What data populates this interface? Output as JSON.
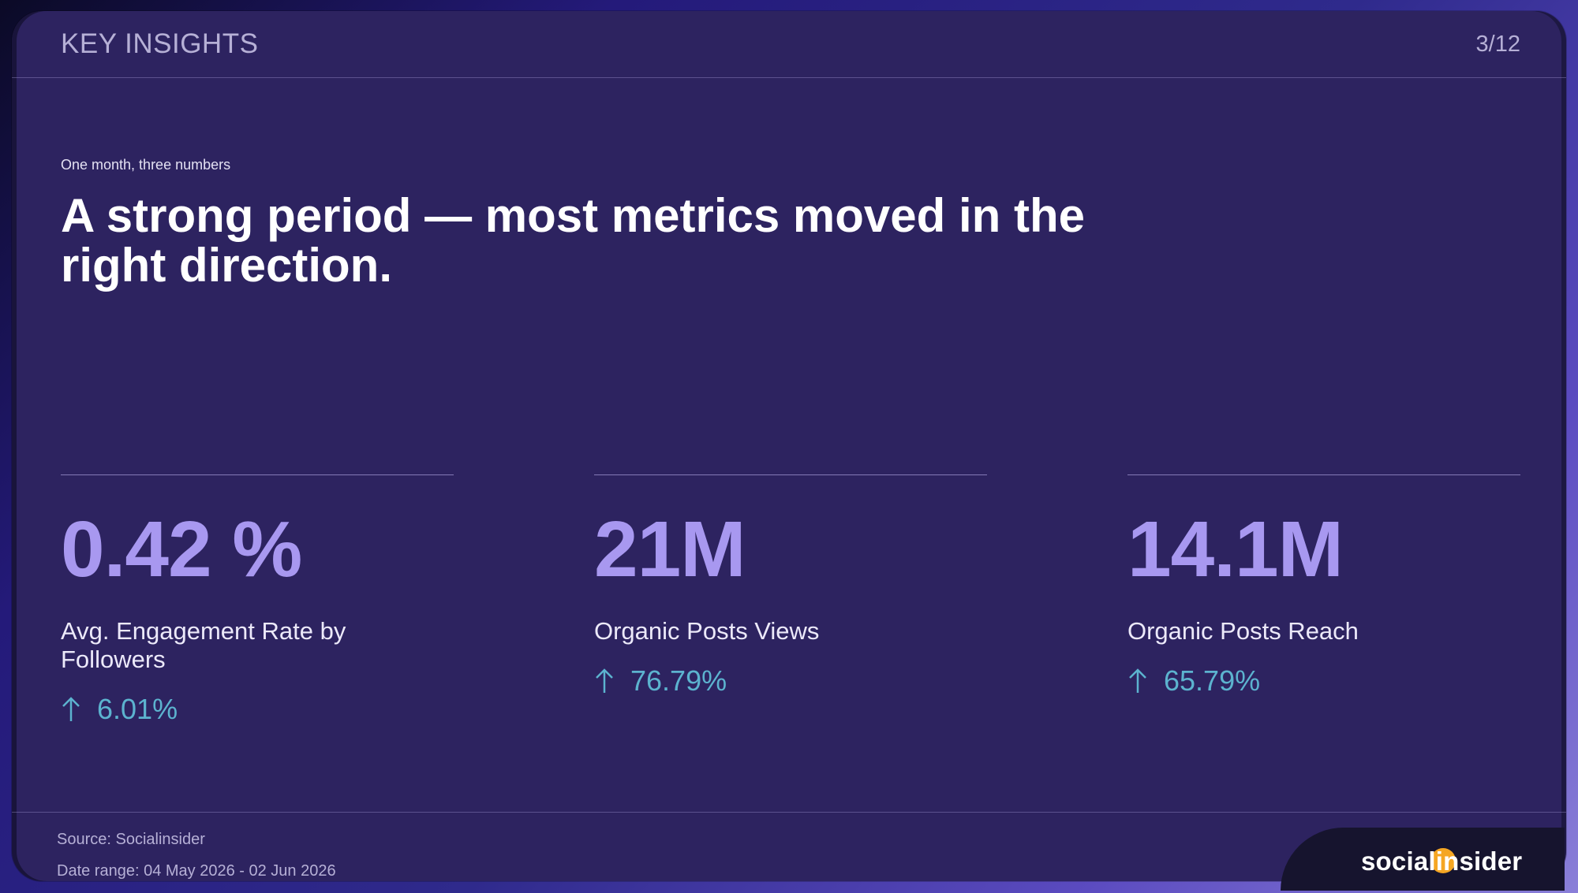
{
  "header": {
    "section_title": "KEY INSIGHTS",
    "page_indicator": "3/12"
  },
  "intro": {
    "eyebrow": "One month, three numbers",
    "headline_line1": "A strong period — most metrics moved in the",
    "headline_line2": "right direction."
  },
  "metrics": [
    {
      "value": "0.42 %",
      "label": "Avg. Engagement Rate by Followers",
      "delta": "6.01%",
      "trend_icon": "arrow-up-icon"
    },
    {
      "value": "21M",
      "label": "Organic Posts Views",
      "delta": "76.79%",
      "trend_icon": "arrow-up-icon"
    },
    {
      "value": "14.1M",
      "label": "Organic Posts Reach",
      "delta": "65.79%",
      "trend_icon": "arrow-up-icon"
    }
  ],
  "footer": {
    "source": "Source: Socialinsider",
    "date_range": "Date range: 04 May 2026 - 02 Jun 2026"
  },
  "brand": {
    "logo_text": "socialinsider"
  },
  "colors": {
    "slide_background": "#2d2360",
    "metric_value": "#a898f0",
    "trend_up": "#5cb3cf",
    "logo_dot": "#f5a623"
  }
}
